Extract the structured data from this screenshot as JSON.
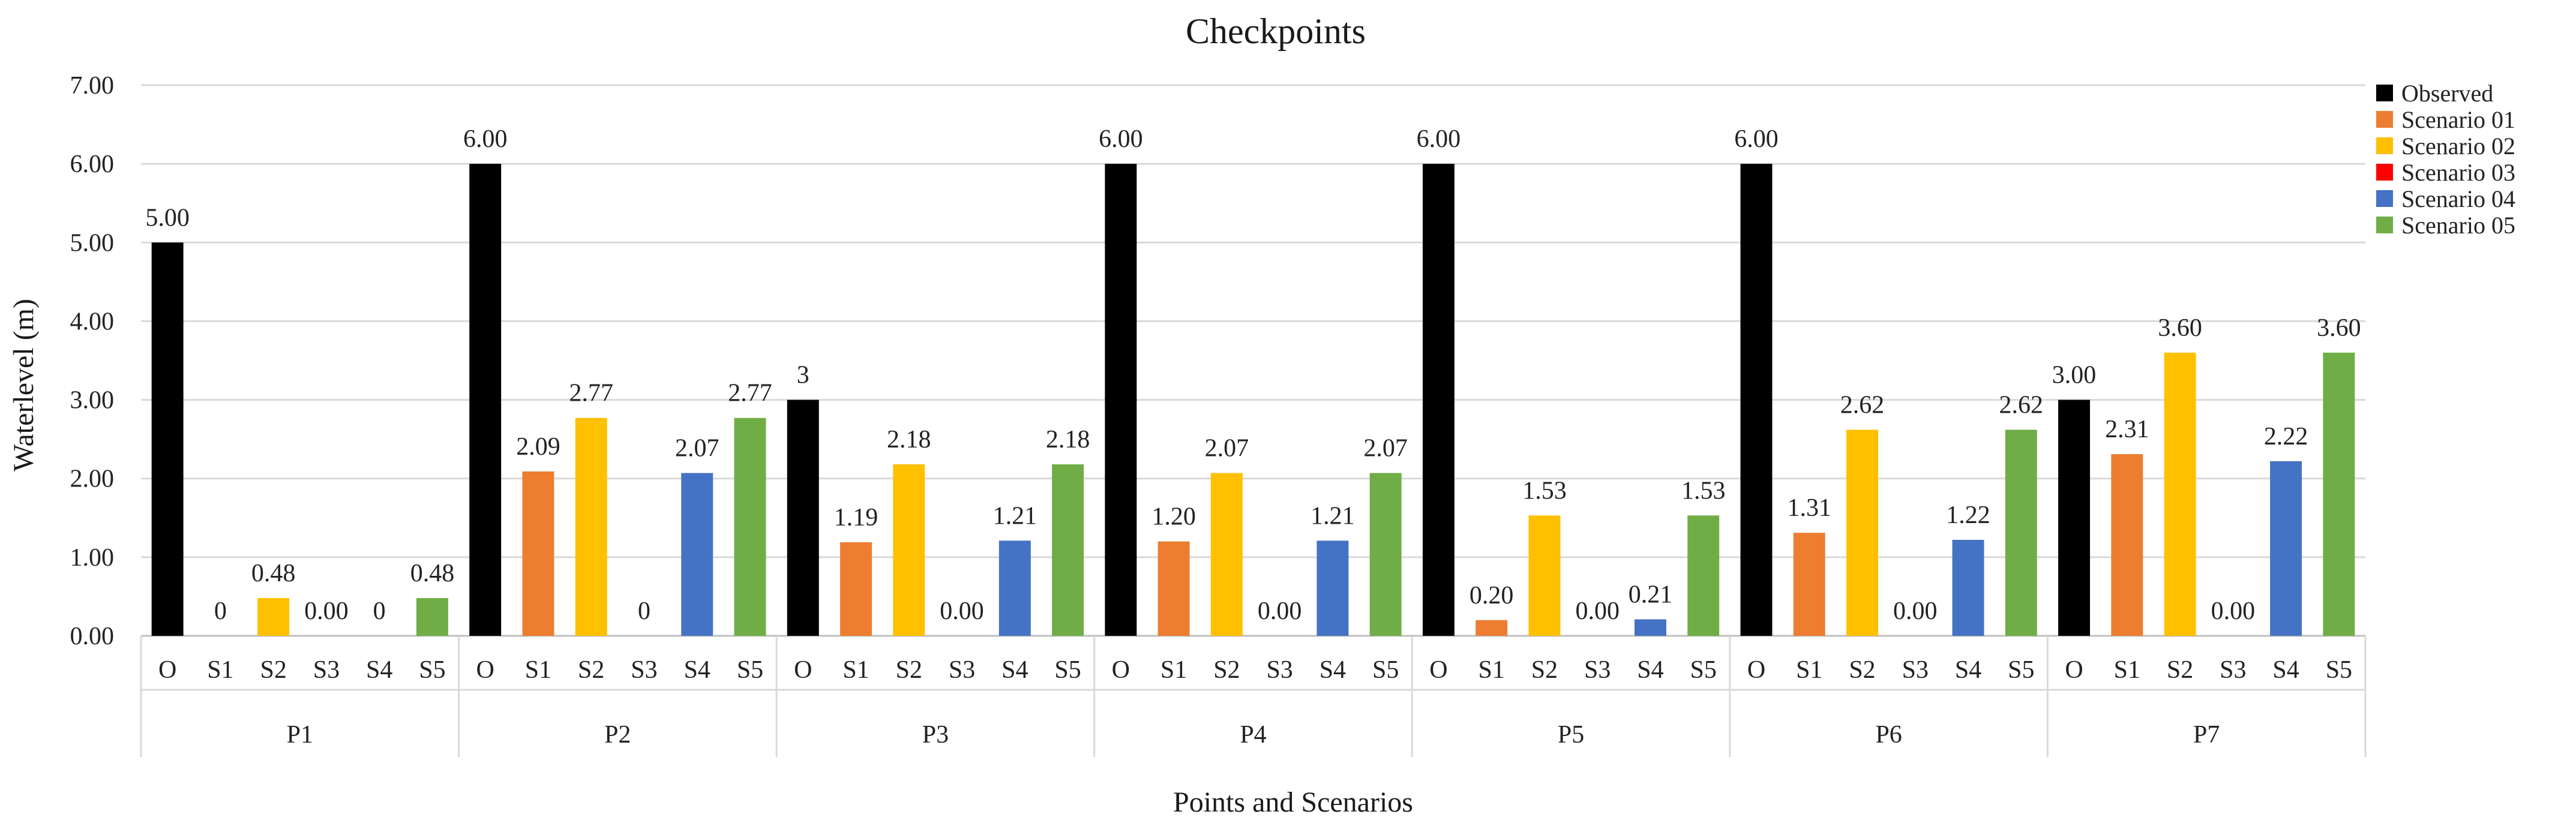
{
  "chart_data": {
    "type": "bar",
    "title": "Checkpoints",
    "xlabel": "Points and Scenarios",
    "ylabel": "Waterlevel (m)",
    "ylim": [
      0,
      7
    ],
    "yticks": [
      "0.00",
      "1.00",
      "2.00",
      "3.00",
      "4.00",
      "5.00",
      "6.00",
      "7.00"
    ],
    "grid": true,
    "legend_position": "right",
    "scenario_labels": [
      "O",
      "S1",
      "S2",
      "S3",
      "S4",
      "S5"
    ],
    "groups": [
      "P1",
      "P2",
      "P3",
      "P4",
      "P5",
      "P6",
      "P7"
    ],
    "series": [
      {
        "name": "Observed",
        "color": "#000000",
        "values": [
          5.0,
          6.0,
          3.0,
          6.0,
          6.0,
          6.0,
          3.0
        ],
        "labels": [
          "5.00",
          "6.00",
          "3",
          "6.00",
          "6.00",
          "6.00",
          "3.00"
        ]
      },
      {
        "name": "Scenario 01",
        "color": "#ED7D31",
        "values": [
          0,
          2.09,
          1.19,
          1.2,
          0.2,
          1.31,
          2.31
        ],
        "labels": [
          "0",
          "2.09",
          "1.19",
          "1.20",
          "0.20",
          "1.31",
          "2.31"
        ]
      },
      {
        "name": "Scenario 02",
        "color": "#FFC000",
        "values": [
          0.48,
          2.77,
          2.18,
          2.07,
          1.53,
          2.62,
          3.6
        ],
        "labels": [
          "0.48",
          "2.77",
          "2.18",
          "2.07",
          "1.53",
          "2.62",
          "3.60"
        ]
      },
      {
        "name": "Scenario 03",
        "color": "#FF0000",
        "values": [
          0,
          0,
          0,
          0,
          0,
          0,
          0
        ],
        "labels": [
          "0.00",
          "0",
          "0.00",
          "0.00",
          "0.00",
          "0.00",
          "0.00"
        ]
      },
      {
        "name": "Scenario 04",
        "color": "#4472C4",
        "values": [
          0,
          2.07,
          1.21,
          1.21,
          0.21,
          1.22,
          2.22
        ],
        "labels": [
          "0",
          "2.07",
          "1.21",
          "1.21",
          "0.21",
          "1.22",
          "2.22"
        ]
      },
      {
        "name": "Scenario 05",
        "color": "#70AD47",
        "values": [
          0.48,
          2.77,
          2.18,
          2.07,
          1.53,
          2.62,
          3.6
        ],
        "labels": [
          "0.48",
          "2.77",
          "2.18",
          "2.07",
          "1.53",
          "2.62",
          "3.60"
        ]
      }
    ]
  }
}
